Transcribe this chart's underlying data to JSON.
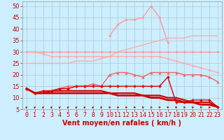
{
  "xlabel": "Vent moyen/en rafales ( km/h )",
  "background_color": "#cceeff",
  "grid_color": "#aacccc",
  "x": [
    0,
    1,
    2,
    3,
    4,
    5,
    6,
    7,
    8,
    9,
    10,
    11,
    12,
    13,
    14,
    15,
    16,
    17,
    18,
    19,
    20,
    21,
    22,
    23
  ],
  "lines": [
    {
      "y": [
        30,
        30,
        30,
        30,
        30,
        30,
        30,
        30,
        30,
        30,
        30,
        30,
        30,
        30,
        30,
        30,
        30,
        30,
        30,
        30,
        30,
        30,
        30,
        30
      ],
      "color": "#ff9999",
      "lw": 1.0,
      "marker": "o",
      "ms": 2.0
    },
    {
      "y": [
        25,
        25,
        25,
        25,
        25,
        25,
        26,
        26,
        26,
        27,
        28,
        30,
        31,
        32,
        33,
        34,
        35,
        36,
        36,
        36,
        37,
        37,
        37,
        37
      ],
      "color": "#ffaaaa",
      "lw": 1.0,
      "marker": null
    },
    {
      "y": [
        null,
        null,
        null,
        null,
        null,
        null,
        null,
        null,
        null,
        null,
        37,
        42,
        44,
        44,
        45,
        50,
        45,
        34,
        null,
        null,
        null,
        null,
        null,
        null
      ],
      "color": "#ff9999",
      "lw": 1.0,
      "marker": "o",
      "ms": 2.0
    },
    {
      "y": [
        30,
        30,
        29,
        28,
        28,
        28,
        28,
        28,
        28,
        28,
        28,
        28,
        28,
        28,
        28,
        28,
        28,
        27,
        26,
        25,
        24,
        23,
        22,
        21
      ],
      "color": "#ffaaaa",
      "lw": 1.0,
      "marker": "o",
      "ms": 2.0
    },
    {
      "y": [
        14,
        12,
        13,
        13,
        14,
        15,
        15,
        15,
        16,
        15,
        20,
        21,
        21,
        20,
        19,
        21,
        21,
        21,
        21,
        20,
        20,
        20,
        19,
        17
      ],
      "color": "#ee6666",
      "lw": 1.0,
      "marker": "^",
      "ms": 2.5
    },
    {
      "y": [
        14,
        12,
        13,
        13,
        14,
        14,
        15,
        15,
        15,
        15,
        15,
        15,
        15,
        15,
        15,
        15,
        15,
        19,
        8,
        8,
        9,
        9,
        9,
        6
      ],
      "color": "#dd0000",
      "lw": 1.0,
      "marker": "D",
      "ms": 2.0
    },
    {
      "y": [
        14,
        12,
        12,
        12,
        12,
        12,
        12,
        12,
        12,
        12,
        12,
        11,
        11,
        11,
        11,
        10,
        10,
        9,
        9,
        8,
        8,
        7,
        7,
        6
      ],
      "color": "#cc0000",
      "lw": 2.0,
      "marker": null
    },
    {
      "y": [
        14,
        12,
        12,
        13,
        13,
        13,
        13,
        13,
        13,
        13,
        12,
        12,
        12,
        12,
        11,
        11,
        11,
        10,
        10,
        9,
        8,
        8,
        8,
        6
      ],
      "color": "#cc0000",
      "lw": 1.5,
      "marker": null
    }
  ],
  "ylim": [
    5,
    52
  ],
  "xlim": [
    -0.5,
    23.5
  ],
  "yticks": [
    5,
    10,
    15,
    20,
    25,
    30,
    35,
    40,
    45,
    50
  ],
  "xticks": [
    0,
    1,
    2,
    3,
    4,
    5,
    6,
    7,
    8,
    9,
    10,
    11,
    12,
    13,
    14,
    15,
    16,
    17,
    18,
    19,
    20,
    21,
    22,
    23
  ],
  "axis_fontsize": 6,
  "xlabel_fontsize": 7,
  "tick_color": "#cc0000",
  "arrow_color": "#cc0000"
}
